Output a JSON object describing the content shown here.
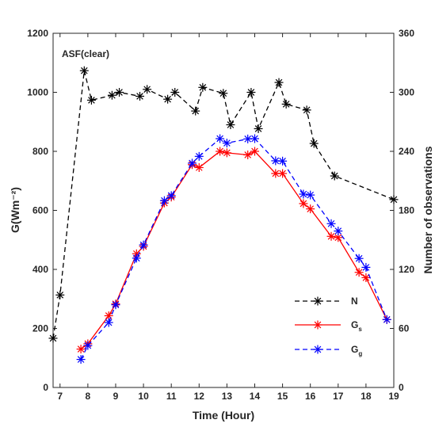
{
  "chart_data": {
    "type": "line",
    "annotation": "ASF(clear)",
    "xlabel": "Time (Hour)",
    "ylabel_left": "G(Wm⁻²)",
    "ylabel_right": "Number of observations",
    "xlim": [
      6.75,
      19
    ],
    "ylim_left": [
      0,
      1200
    ],
    "ylim_right": [
      0,
      360
    ],
    "xticks": [
      7,
      8,
      9,
      10,
      11,
      12,
      13,
      14,
      15,
      16,
      17,
      18,
      19
    ],
    "yticks_left": [
      0,
      200,
      400,
      600,
      800,
      1000,
      1200
    ],
    "yticks_right": [
      0,
      60,
      120,
      180,
      240,
      300,
      360
    ],
    "grid": false,
    "legend_position": "bottom-right",
    "series": [
      {
        "name": "N",
        "axis": "right",
        "color": "#000000",
        "dash": "dashed",
        "marker": "asterisk",
        "points": [
          [
            6.75,
            50
          ],
          [
            7.0,
            94
          ],
          [
            7.87,
            322
          ],
          [
            8.13,
            292
          ],
          [
            8.87,
            297
          ],
          [
            9.13,
            300
          ],
          [
            9.87,
            296
          ],
          [
            10.13,
            303
          ],
          [
            10.87,
            293
          ],
          [
            11.13,
            300
          ],
          [
            11.87,
            281
          ],
          [
            12.13,
            305
          ],
          [
            12.87,
            299
          ],
          [
            13.13,
            267
          ],
          [
            13.87,
            300
          ],
          [
            14.13,
            263
          ],
          [
            14.87,
            310
          ],
          [
            15.13,
            288
          ],
          [
            15.87,
            282
          ],
          [
            16.13,
            248
          ],
          [
            16.87,
            215
          ],
          [
            19.0,
            191
          ]
        ]
      },
      {
        "name": "Gs",
        "axis": "left",
        "color": "#ff0000",
        "dash": "solid",
        "marker": "asterisk",
        "points": [
          [
            7.75,
            130
          ],
          [
            8.0,
            148
          ],
          [
            8.75,
            243
          ],
          [
            9.0,
            283
          ],
          [
            9.75,
            453
          ],
          [
            10.0,
            478
          ],
          [
            10.75,
            625
          ],
          [
            11.0,
            645
          ],
          [
            11.75,
            755
          ],
          [
            12.0,
            745
          ],
          [
            12.75,
            800
          ],
          [
            13.0,
            795
          ],
          [
            13.75,
            788
          ],
          [
            14.0,
            800
          ],
          [
            14.75,
            725
          ],
          [
            15.0,
            725
          ],
          [
            15.75,
            623
          ],
          [
            16.0,
            605
          ],
          [
            16.75,
            512
          ],
          [
            17.0,
            508
          ],
          [
            17.75,
            390
          ],
          [
            18.0,
            372
          ],
          [
            18.75,
            230
          ]
        ]
      },
      {
        "name": "Gg",
        "axis": "left",
        "color": "#0000ff",
        "dash": "dashed",
        "marker": "asterisk",
        "points": [
          [
            7.75,
            95
          ],
          [
            8.0,
            142
          ],
          [
            8.75,
            220
          ],
          [
            9.0,
            280
          ],
          [
            9.75,
            438
          ],
          [
            10.0,
            483
          ],
          [
            10.75,
            633
          ],
          [
            11.0,
            650
          ],
          [
            11.75,
            760
          ],
          [
            12.0,
            783
          ],
          [
            12.75,
            843
          ],
          [
            13.0,
            828
          ],
          [
            13.75,
            842
          ],
          [
            14.0,
            843
          ],
          [
            14.75,
            768
          ],
          [
            15.0,
            767
          ],
          [
            15.75,
            655
          ],
          [
            16.0,
            652
          ],
          [
            16.75,
            555
          ],
          [
            17.0,
            530
          ],
          [
            17.75,
            437
          ],
          [
            18.0,
            407
          ],
          [
            18.75,
            230
          ]
        ]
      }
    ]
  }
}
